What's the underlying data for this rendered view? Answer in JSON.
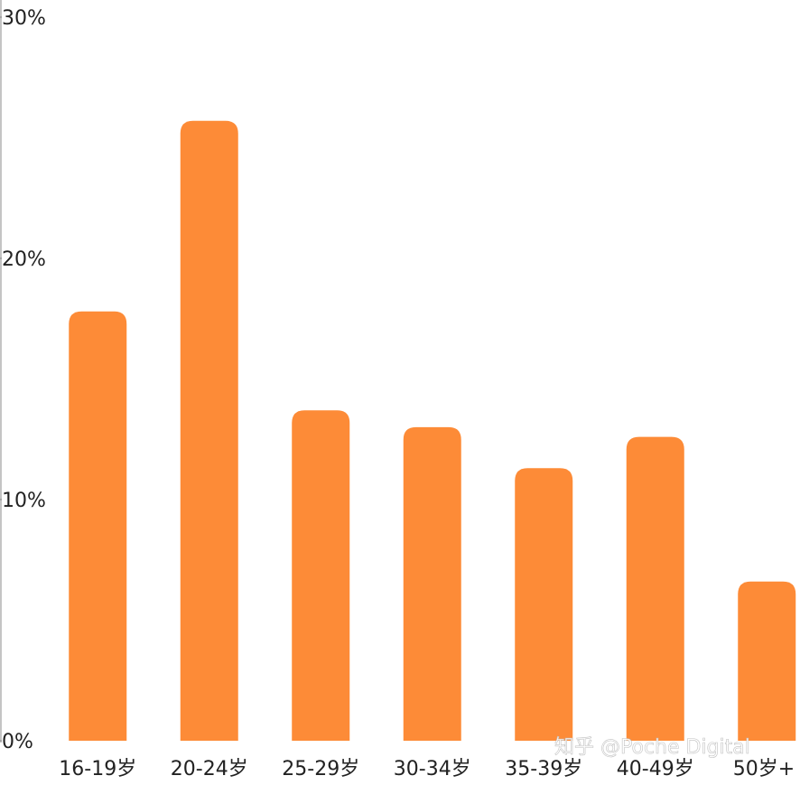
{
  "chart_data": {
    "type": "bar",
    "categories": [
      "16-19岁",
      "20-24岁",
      "25-29岁",
      "30-34岁",
      "35-39岁",
      "40-49岁",
      "50岁+"
    ],
    "values": [
      17.8,
      25.7,
      13.7,
      13.0,
      11.3,
      12.6,
      6.6
    ],
    "color": "#fd8b37",
    "ylim": [
      0,
      30
    ],
    "yticks": [
      {
        "value": 0,
        "label": "0%"
      },
      {
        "value": 10,
        "label": "10%"
      },
      {
        "value": 20,
        "label": "20%"
      },
      {
        "value": 30,
        "label": "30%"
      }
    ],
    "grid": false,
    "watermark": "知乎 @Poche Digital"
  }
}
